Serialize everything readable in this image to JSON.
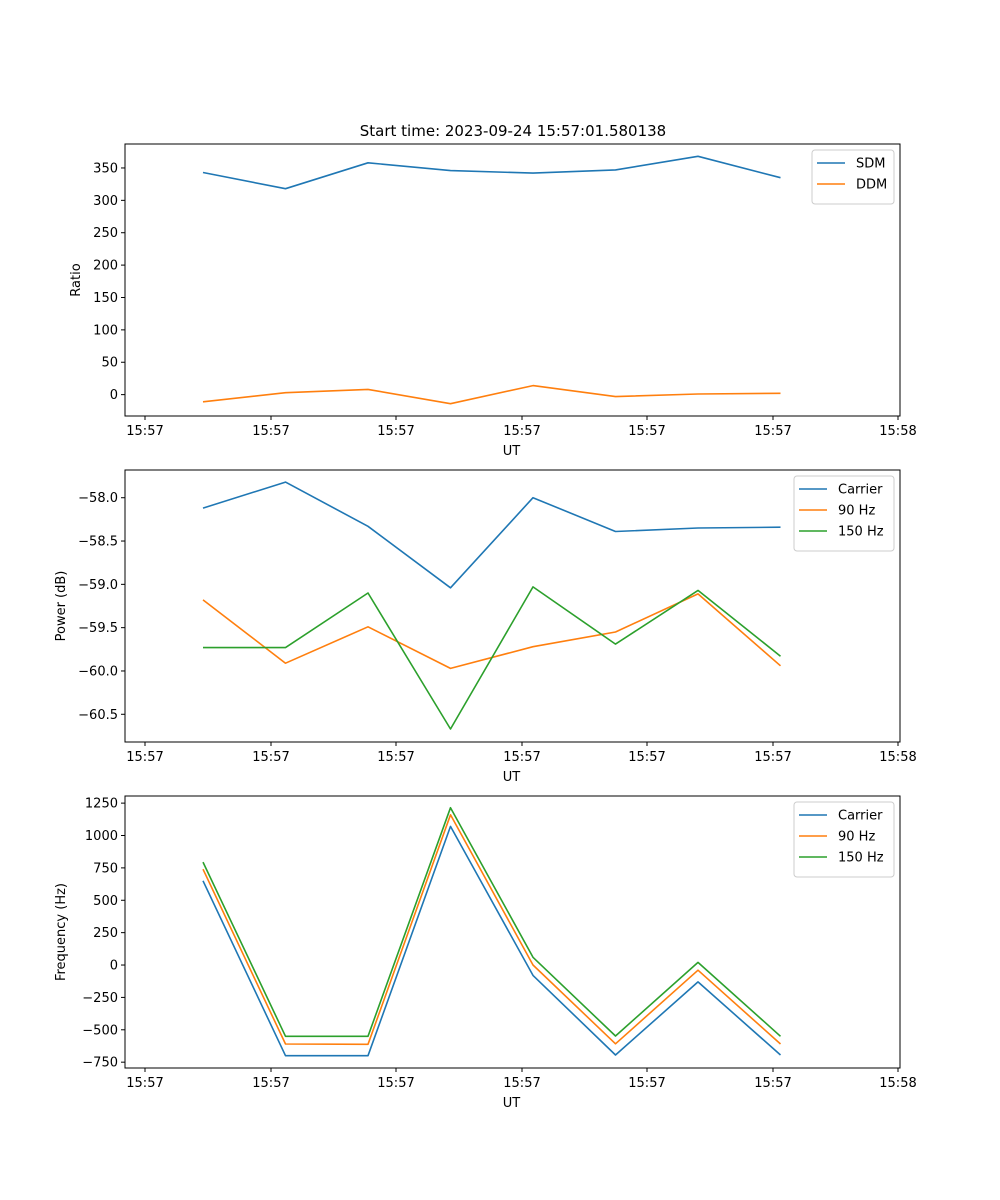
{
  "figure_title": "Start time: 2023-09-24 15:57:01.580138",
  "colors": {
    "blue": "#1f77b4",
    "orange": "#ff7f0e",
    "green": "#2ca02c"
  },
  "chart_data": [
    {
      "type": "line",
      "xlabel": "UT",
      "ylabel": "Ratio",
      "x_tick_labels": [
        "15:57",
        "15:57",
        "15:57",
        "15:57",
        "15:57",
        "15:57",
        "15:58"
      ],
      "yticks": [
        0,
        50,
        100,
        150,
        200,
        250,
        300,
        350
      ],
      "ytick_labels": [
        "0",
        "50",
        "100",
        "150",
        "200",
        "250",
        "300",
        "350"
      ],
      "ylim": [
        -33,
        387
      ],
      "legend_position": "top-right",
      "series": [
        {
          "name": "SDM",
          "color": "#1f77b4",
          "values": [
            343,
            318,
            358,
            346,
            342,
            347,
            368,
            335
          ]
        },
        {
          "name": "DDM",
          "color": "#ff7f0e",
          "values": [
            -11,
            3,
            8,
            -14,
            14,
            -3,
            1,
            2
          ]
        }
      ]
    },
    {
      "type": "line",
      "xlabel": "UT",
      "ylabel": "Power (dB)",
      "x_tick_labels": [
        "15:57",
        "15:57",
        "15:57",
        "15:57",
        "15:57",
        "15:57",
        "15:58"
      ],
      "yticks": [
        -60.5,
        -60.0,
        -59.5,
        -59.0,
        -58.5,
        -58.0
      ],
      "ytick_labels": [
        "−60.5",
        "−60.0",
        "−59.5",
        "−59.0",
        "−58.5",
        "−58.0"
      ],
      "ylim": [
        -60.82,
        -57.68
      ],
      "legend_position": "top-right",
      "series": [
        {
          "name": "Carrier",
          "color": "#1f77b4",
          "values": [
            -58.12,
            -57.82,
            -58.33,
            -59.04,
            -58.0,
            -58.39,
            -58.35,
            -58.34
          ]
        },
        {
          "name": "90 Hz",
          "color": "#ff7f0e",
          "values": [
            -59.18,
            -59.91,
            -59.49,
            -59.97,
            -59.72,
            -59.55,
            -59.11,
            -59.94
          ]
        },
        {
          "name": "150 Hz",
          "color": "#2ca02c",
          "values": [
            -59.73,
            -59.73,
            -59.1,
            -60.67,
            -59.03,
            -59.69,
            -59.07,
            -59.83
          ]
        }
      ]
    },
    {
      "type": "line",
      "xlabel": "UT",
      "ylabel": "Frequency (Hz)",
      "x_tick_labels": [
        "15:57",
        "15:57",
        "15:57",
        "15:57",
        "15:57",
        "15:57",
        "15:58"
      ],
      "yticks": [
        -750,
        -500,
        -250,
        0,
        250,
        500,
        750,
        1000,
        1250
      ],
      "ytick_labels": [
        "−750",
        "−500",
        "−250",
        "0",
        "250",
        "500",
        "750",
        "1000",
        "1250"
      ],
      "ylim": [
        -795,
        1305
      ],
      "legend_position": "top-right",
      "series": [
        {
          "name": "Carrier",
          "color": "#1f77b4",
          "values": [
            650,
            -700,
            -700,
            1070,
            -80,
            -695,
            -130,
            -695
          ]
        },
        {
          "name": "90 Hz",
          "color": "#ff7f0e",
          "values": [
            740,
            -610,
            -612,
            1160,
            0,
            -608,
            -40,
            -610
          ]
        },
        {
          "name": "150 Hz",
          "color": "#2ca02c",
          "values": [
            795,
            -550,
            -550,
            1215,
            60,
            -548,
            20,
            -550
          ]
        }
      ]
    }
  ]
}
